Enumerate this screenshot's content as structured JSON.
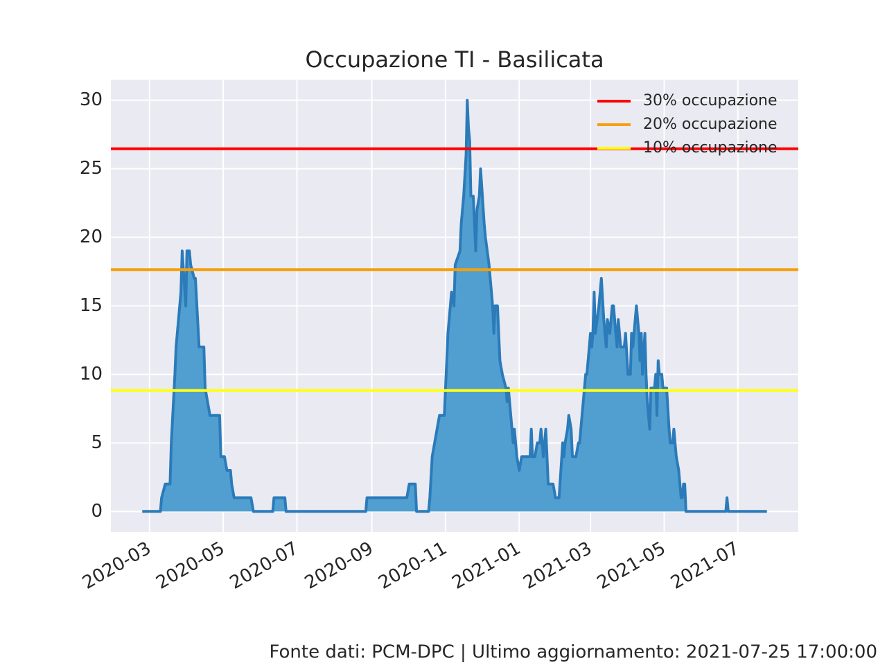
{
  "chart_data": {
    "type": "area",
    "title": "Occupazione TI - Basilicata",
    "x": [
      "2020-02-24",
      "2020-03-10",
      "2020-03-11",
      "2020-03-14",
      "2020-03-18",
      "2020-03-19",
      "2020-03-22",
      "2020-03-23",
      "2020-03-27",
      "2020-03-28",
      "2020-03-31",
      "2020-04-01",
      "2020-04-03",
      "2020-04-04",
      "2020-04-07",
      "2020-04-08",
      "2020-04-11",
      "2020-04-15",
      "2020-04-16",
      "2020-04-18",
      "2020-04-20",
      "2020-04-28",
      "2020-04-29",
      "2020-05-02",
      "2020-05-04",
      "2020-05-07",
      "2020-05-08",
      "2020-05-10",
      "2020-05-24",
      "2020-05-26",
      "2020-06-11",
      "2020-06-12",
      "2020-06-21",
      "2020-06-22",
      "2020-08-27",
      "2020-08-28",
      "2020-09-30",
      "2020-10-02",
      "2020-10-07",
      "2020-10-08",
      "2020-10-18",
      "2020-10-19",
      "2020-10-21",
      "2020-10-23",
      "2020-10-27",
      "2020-10-31",
      "2020-11-02",
      "2020-11-03",
      "2020-11-05",
      "2020-11-06",
      "2020-11-08",
      "2020-11-09",
      "2020-11-13",
      "2020-11-14",
      "2020-11-16",
      "2020-11-18",
      "2020-11-19",
      "2020-11-20",
      "2020-11-21",
      "2020-11-22",
      "2020-11-24",
      "2020-11-26",
      "2020-11-27",
      "2020-11-29",
      "2020-11-30",
      "2020-12-03",
      "2020-12-04",
      "2020-12-07",
      "2020-12-10",
      "2020-12-11",
      "2020-12-12",
      "2020-12-14",
      "2020-12-16",
      "2020-12-18",
      "2020-12-21",
      "2020-12-22",
      "2020-12-23",
      "2020-12-25",
      "2020-12-27",
      "2020-12-28",
      "2020-12-30",
      "2021-01-01",
      "2021-01-03",
      "2021-01-10",
      "2021-01-11",
      "2021-01-12",
      "2021-01-14",
      "2021-01-16",
      "2021-01-18",
      "2021-01-19",
      "2021-01-21",
      "2021-01-23",
      "2021-01-25",
      "2021-01-29",
      "2021-01-31",
      "2021-02-03",
      "2021-02-06",
      "2021-02-07",
      "2021-02-08",
      "2021-02-10",
      "2021-02-11",
      "2021-02-13",
      "2021-02-14",
      "2021-02-17",
      "2021-02-19",
      "2021-02-20",
      "2021-02-22",
      "2021-02-25",
      "2021-02-26",
      "2021-02-28",
      "2021-03-01",
      "2021-03-02",
      "2021-03-03",
      "2021-03-04",
      "2021-03-05",
      "2021-03-08",
      "2021-03-10",
      "2021-03-12",
      "2021-03-14",
      "2021-03-15",
      "2021-03-17",
      "2021-03-19",
      "2021-03-20",
      "2021-03-22",
      "2021-03-23",
      "2021-03-24",
      "2021-03-26",
      "2021-03-29",
      "2021-03-30",
      "2021-04-01",
      "2021-04-03",
      "2021-04-04",
      "2021-04-05",
      "2021-04-08",
      "2021-04-10",
      "2021-04-11",
      "2021-04-12",
      "2021-04-13",
      "2021-04-15",
      "2021-04-16",
      "2021-04-17",
      "2021-04-19",
      "2021-04-20",
      "2021-04-23",
      "2021-04-24",
      "2021-04-25",
      "2021-04-26",
      "2021-04-27",
      "2021-04-29",
      "2021-04-30",
      "2021-05-03",
      "2021-05-05",
      "2021-05-06",
      "2021-05-08",
      "2021-05-09",
      "2021-05-11",
      "2021-05-13",
      "2021-05-15",
      "2021-05-16",
      "2021-05-17",
      "2021-05-18",
      "2021-05-19",
      "2021-06-21",
      "2021-06-22",
      "2021-06-23",
      "2021-07-25"
    ],
    "values": [
      0,
      0,
      1,
      2,
      2,
      5,
      10,
      12,
      16,
      19,
      15,
      19,
      19,
      18,
      17,
      17,
      12,
      12,
      9,
      8,
      7,
      7,
      4,
      4,
      3,
      3,
      2,
      1,
      1,
      0,
      0,
      1,
      1,
      0,
      0,
      1,
      1,
      2,
      2,
      0,
      0,
      1,
      4,
      5,
      7,
      7,
      11,
      13,
      15,
      16,
      15,
      18,
      19,
      21,
      23,
      26,
      30,
      28,
      27,
      23,
      23,
      19,
      22,
      23,
      25,
      21,
      20,
      18,
      15,
      13,
      15,
      15,
      11,
      10,
      9,
      8,
      9,
      7,
      5,
      6,
      4,
      3,
      4,
      4,
      6,
      4,
      4,
      5,
      5,
      6,
      4,
      6,
      2,
      2,
      1,
      1,
      5,
      4,
      5,
      6,
      7,
      6,
      4,
      4,
      5,
      5,
      7,
      10,
      10,
      12,
      13,
      12,
      13,
      16,
      13,
      15,
      17,
      14,
      12,
      14,
      13,
      15,
      15,
      13,
      12,
      14,
      12,
      12,
      13,
      10,
      10,
      13,
      12,
      15,
      13,
      11,
      13,
      10,
      13,
      10,
      8,
      6,
      9,
      9,
      10,
      7,
      11,
      10,
      10,
      9,
      9,
      6,
      5,
      5,
      6,
      4,
      3,
      1,
      1,
      2,
      2,
      0,
      0,
      1,
      0,
      0
    ],
    "color": "#2b7bba",
    "fill": "#519fd0",
    "xlim": [
      "2020-01-29",
      "2021-08-20"
    ],
    "xticks": [
      {
        "value": "2020-03-01",
        "label": "2020-03"
      },
      {
        "value": "2020-05-01",
        "label": "2020-05"
      },
      {
        "value": "2020-07-01",
        "label": "2020-07"
      },
      {
        "value": "2020-09-01",
        "label": "2020-09"
      },
      {
        "value": "2020-11-01",
        "label": "2020-11"
      },
      {
        "value": "2021-01-01",
        "label": "2021-01"
      },
      {
        "value": "2021-03-01",
        "label": "2021-03"
      },
      {
        "value": "2021-05-01",
        "label": "2021-05"
      },
      {
        "value": "2021-07-01",
        "label": "2021-07"
      }
    ],
    "ylim": [
      -1.5,
      31.5
    ],
    "yticks": [
      0,
      5,
      10,
      15,
      20,
      25,
      30
    ],
    "grid": true,
    "thresholds": [
      {
        "name": "30% occupazione",
        "color": "#ff0000",
        "value": 26.46
      },
      {
        "name": "20% occupazione",
        "color": "#f5a00a",
        "value": 17.64
      },
      {
        "name": "10% occupazione",
        "color": "#ffff14",
        "value": 8.82
      }
    ],
    "legend": "upper right",
    "source": "Fonte dati: PCM-DPC | Ultimo aggiornamento: 2021-07-25 17:00:00"
  }
}
